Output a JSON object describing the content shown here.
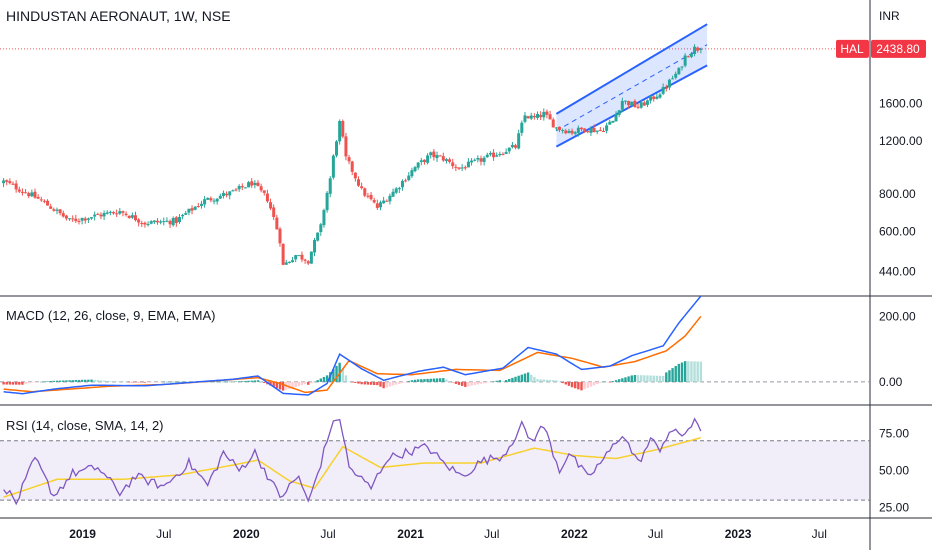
{
  "header": {
    "title": "HINDUSTAN AERONAUT, 1W, NSE",
    "currency": "INR",
    "symbol": "HAL",
    "last_price": "2438.80"
  },
  "colors": {
    "up": "#26a69a",
    "down": "#ef5350",
    "macd_line": "#2962ff",
    "signal_line": "#ff6d00",
    "rsi_line": "#7e57c2",
    "rsi_ma": "#f7d02c",
    "channel": "#2962ff",
    "badge": "#f23645"
  },
  "panes": {
    "macd_label": "MACD (12, 26, close, 9, EMA, EMA)",
    "rsi_label": "RSI (14, close, SMA, 14, 2)"
  },
  "chart_data": [
    {
      "type": "candlestick",
      "title": "HINDUSTAN AERONAUT, 1W, NSE",
      "scale": "log",
      "ylim": [
        400,
        3000
      ],
      "y_ticks": [
        "1600.00",
        "1200.00",
        "800.00",
        "600.00",
        "440.00"
      ],
      "y_tick_values": [
        1600,
        1200,
        800,
        600,
        440
      ],
      "x_ticks": [
        "2019",
        "Jul",
        "2020",
        "Jul",
        "2021",
        "Jul",
        "2022",
        "Jul",
        "2023",
        "Jul"
      ],
      "x_tick_dates": [
        "2019-01-01",
        "2019-07-01",
        "2020-01-01",
        "2020-07-01",
        "2021-01-01",
        "2021-07-01",
        "2022-01-01",
        "2022-07-01",
        "2023-01-01",
        "2023-07-01"
      ],
      "x_tick_bold": [
        true,
        false,
        true,
        false,
        true,
        false,
        true,
        false,
        true,
        false
      ],
      "xlim": [
        "2018-07-01",
        "2023-10-22"
      ],
      "close_anchors": [
        [
          "2018-07-09",
          880
        ],
        [
          "2018-09-24",
          770
        ],
        [
          "2018-12-03",
          650
        ],
        [
          "2019-03-25",
          700
        ],
        [
          "2019-05-20",
          640
        ],
        [
          "2019-07-29",
          650
        ],
        [
          "2019-09-30",
          760
        ],
        [
          "2019-12-02",
          810
        ],
        [
          "2020-01-13",
          870
        ],
        [
          "2020-02-17",
          770
        ],
        [
          "2020-03-16",
          560
        ],
        [
          "2020-03-23",
          460
        ],
        [
          "2020-04-20",
          500
        ],
        [
          "2020-05-18",
          480
        ],
        [
          "2020-06-15",
          620
        ],
        [
          "2020-07-06",
          900
        ],
        [
          "2020-07-27",
          1380
        ],
        [
          "2020-08-10",
          1050
        ],
        [
          "2020-09-14",
          820
        ],
        [
          "2020-10-19",
          720
        ],
        [
          "2020-11-30",
          830
        ],
        [
          "2021-01-11",
          980
        ],
        [
          "2021-02-15",
          1080
        ],
        [
          "2021-03-15",
          1050
        ],
        [
          "2021-04-19",
          970
        ],
        [
          "2021-05-24",
          1020
        ],
        [
          "2021-07-05",
          1080
        ],
        [
          "2021-08-23",
          1150
        ],
        [
          "2021-09-13",
          1460
        ],
        [
          "2021-10-04",
          1430
        ],
        [
          "2021-10-25",
          1480
        ],
        [
          "2021-11-22",
          1330
        ],
        [
          "2021-12-27",
          1290
        ],
        [
          "2022-01-24",
          1320
        ],
        [
          "2022-02-28",
          1300
        ],
        [
          "2022-03-28",
          1400
        ],
        [
          "2022-04-18",
          1640
        ],
        [
          "2022-05-23",
          1560
        ],
        [
          "2022-06-20",
          1650
        ],
        [
          "2022-07-18",
          1780
        ],
        [
          "2022-08-08",
          1950
        ],
        [
          "2022-08-22",
          2060
        ],
        [
          "2022-09-05",
          2300
        ],
        [
          "2022-09-26",
          2450
        ],
        [
          "2022-10-10",
          2438.8
        ]
      ],
      "last_close": 2438.8,
      "price_line": 2438.8,
      "channel": {
        "upper": [
          [
            "2021-11-22",
            1480
          ],
          [
            "2022-10-24",
            2950
          ]
        ],
        "lower": [
          [
            "2021-11-22",
            1150
          ],
          [
            "2022-10-24",
            2150
          ]
        ],
        "mid": [
          [
            "2021-11-22",
            1300
          ],
          [
            "2022-10-24",
            2520
          ]
        ]
      }
    },
    {
      "type": "line",
      "title": "MACD (12, 26, close, 9, EMA, EMA)",
      "ylim": [
        -40,
        250
      ],
      "y_ticks": [
        "200.00",
        "0.00"
      ],
      "y_tick_values": [
        200,
        0
      ],
      "series": [
        {
          "name": "MACD",
          "anchors": [
            [
              "2018-07-09",
              -30
            ],
            [
              "2018-08-20",
              -36
            ],
            [
              "2018-10-29",
              -22
            ],
            [
              "2019-01-21",
              -10
            ],
            [
              "2019-05-20",
              -12
            ],
            [
              "2019-08-26",
              -2
            ],
            [
              "2019-12-02",
              8
            ],
            [
              "2020-01-27",
              18
            ],
            [
              "2020-02-17",
              -2
            ],
            [
              "2020-03-23",
              -35
            ],
            [
              "2020-05-18",
              -40
            ],
            [
              "2020-06-29",
              -5
            ],
            [
              "2020-07-27",
              85
            ],
            [
              "2020-09-14",
              40
            ],
            [
              "2020-11-02",
              5
            ],
            [
              "2021-01-18",
              32
            ],
            [
              "2021-03-15",
              45
            ],
            [
              "2021-05-03",
              22
            ],
            [
              "2021-07-26",
              42
            ],
            [
              "2021-09-20",
              105
            ],
            [
              "2021-11-22",
              85
            ],
            [
              "2022-01-17",
              38
            ],
            [
              "2022-03-21",
              48
            ],
            [
              "2022-05-09",
              80
            ],
            [
              "2022-07-18",
              110
            ],
            [
              "2022-08-22",
              180
            ],
            [
              "2022-10-10",
              262
            ]
          ]
        },
        {
          "name": "Signal",
          "anchors": [
            [
              "2018-07-09",
              -22
            ],
            [
              "2018-09-10",
              -30
            ],
            [
              "2018-12-03",
              -22
            ],
            [
              "2019-03-04",
              -13
            ],
            [
              "2019-07-01",
              -8
            ],
            [
              "2019-10-21",
              3
            ],
            [
              "2020-01-27",
              13
            ],
            [
              "2020-03-16",
              -5
            ],
            [
              "2020-05-11",
              -32
            ],
            [
              "2020-06-29",
              -25
            ],
            [
              "2020-08-17",
              65
            ],
            [
              "2020-10-19",
              25
            ],
            [
              "2021-01-04",
              22
            ],
            [
              "2021-04-12",
              38
            ],
            [
              "2021-07-19",
              35
            ],
            [
              "2021-10-11",
              90
            ],
            [
              "2021-12-27",
              72
            ],
            [
              "2022-03-07",
              45
            ],
            [
              "2022-05-16",
              62
            ],
            [
              "2022-07-25",
              95
            ],
            [
              "2022-09-05",
              140
            ],
            [
              "2022-10-10",
              200
            ]
          ]
        }
      ]
    },
    {
      "type": "line",
      "title": "RSI (14, close, SMA, 14, 2)",
      "ylim": [
        20,
        90
      ],
      "y_ticks": [
        "75.00",
        "50.00",
        "25.00"
      ],
      "y_tick_values": [
        75,
        50,
        25
      ],
      "band": [
        30,
        70
      ],
      "series": [
        {
          "name": "RSI",
          "anchors": [
            [
              "2018-07-09",
              40
            ],
            [
              "2018-08-06",
              28
            ],
            [
              "2018-09-17",
              58
            ],
            [
              "2018-10-29",
              33
            ],
            [
              "2018-12-10",
              48
            ],
            [
              "2019-02-04",
              52
            ],
            [
              "2019-03-25",
              35
            ],
            [
              "2019-04-29",
              46
            ],
            [
              "2019-07-01",
              39
            ],
            [
              "2019-08-26",
              55
            ],
            [
              "2019-10-07",
              40
            ],
            [
              "2019-11-11",
              62
            ],
            [
              "2019-12-16",
              50
            ],
            [
              "2020-01-20",
              62
            ],
            [
              "2020-02-17",
              47
            ],
            [
              "2020-03-16",
              32
            ],
            [
              "2020-04-27",
              46
            ],
            [
              "2020-05-18",
              28
            ],
            [
              "2020-06-15",
              55
            ],
            [
              "2020-07-06",
              78
            ],
            [
              "2020-07-27",
              86
            ],
            [
              "2020-08-17",
              52
            ],
            [
              "2020-10-05",
              38
            ],
            [
              "2020-11-09",
              58
            ],
            [
              "2020-12-21",
              62
            ],
            [
              "2021-02-08",
              66
            ],
            [
              "2021-03-15",
              55
            ],
            [
              "2021-04-26",
              46
            ],
            [
              "2021-06-07",
              56
            ],
            [
              "2021-07-26",
              60
            ],
            [
              "2021-09-06",
              80
            ],
            [
              "2021-09-27",
              70
            ],
            [
              "2021-10-25",
              80
            ],
            [
              "2021-11-29",
              50
            ],
            [
              "2021-12-20",
              62
            ],
            [
              "2022-01-31",
              45
            ],
            [
              "2022-03-14",
              60
            ],
            [
              "2022-04-18",
              75
            ],
            [
              "2022-05-23",
              55
            ],
            [
              "2022-06-20",
              70
            ],
            [
              "2022-07-11",
              65
            ],
            [
              "2022-08-01",
              76
            ],
            [
              "2022-08-29",
              74
            ],
            [
              "2022-09-26",
              82
            ],
            [
              "2022-10-10",
              77
            ]
          ]
        },
        {
          "name": "RSI-based MA",
          "anchors": [
            [
              "2018-07-09",
              32
            ],
            [
              "2018-11-05",
              44
            ],
            [
              "2019-04-01",
              44
            ],
            [
              "2019-08-05",
              47
            ],
            [
              "2019-12-09",
              54
            ],
            [
              "2020-01-27",
              57
            ],
            [
              "2020-04-06",
              43
            ],
            [
              "2020-06-01",
              38
            ],
            [
              "2020-08-03",
              66
            ],
            [
              "2020-10-26",
              52
            ],
            [
              "2021-02-01",
              55
            ],
            [
              "2021-06-07",
              55
            ],
            [
              "2021-10-04",
              65
            ],
            [
              "2022-01-03",
              60
            ],
            [
              "2022-04-04",
              58
            ],
            [
              "2022-07-04",
              64
            ],
            [
              "2022-10-10",
              72
            ]
          ]
        }
      ]
    }
  ]
}
